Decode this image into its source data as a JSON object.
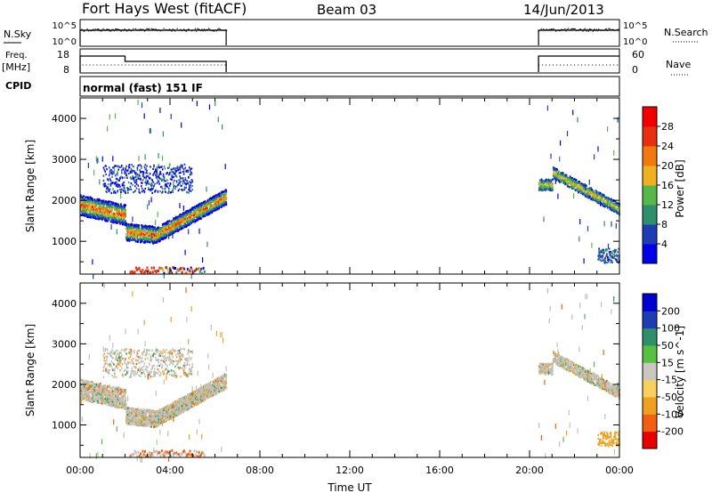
{
  "header": {
    "title": "Fort Hays West (fitACF)",
    "beam": "Beam 03",
    "date": "14/Jun/2013"
  },
  "top_panels": {
    "nsky_label": "N.Sky",
    "nsky_ticks": [
      "10^5",
      "10^0"
    ],
    "nsearch_label": "N.Search",
    "nsearch_ticks": [
      "10^5",
      "10^0"
    ],
    "freq_label": "Freq.",
    "freq_unit": "[MHz]",
    "freq_ticks": [
      "18",
      "8"
    ],
    "nave_label": "Nave",
    "nave_ticks": [
      "60",
      "0"
    ],
    "cpid_label": "CPID",
    "cpid_value": "normal (fast) 151 IF",
    "gap_start_hour": 6.5,
    "gap_end_hour": 20.4
  },
  "chart_data": [
    {
      "type": "heatmap",
      "parameter": "Power",
      "ylabel": "Slant Range [km]",
      "ylim": [
        200,
        4500
      ],
      "yticks": [
        1000,
        2000,
        3000,
        4000
      ],
      "xlim": [
        0,
        24
      ],
      "colorbar_label": "Power [dB]",
      "colorbar_ticks": [
        "28",
        "24",
        "20",
        "16",
        "12",
        "8",
        "4"
      ],
      "colorbar_colors": [
        "#0000e8",
        "#1e3cb4",
        "#2f8f6a",
        "#57b84a",
        "#f0b020",
        "#f07a10",
        "#e83010",
        "#f00000"
      ]
    },
    {
      "type": "heatmap",
      "parameter": "Velocity",
      "ylabel": "Slant Range [km]",
      "ylim": [
        200,
        4500
      ],
      "yticks": [
        1000,
        2000,
        3000,
        4000
      ],
      "xlim": [
        0,
        24
      ],
      "xlabel": "Time UT",
      "xticks": [
        "00:00",
        "04:00",
        "08:00",
        "12:00",
        "16:00",
        "20:00",
        "00:00"
      ],
      "colorbar_label": "Velocity [m s^-1]",
      "colorbar_ticks": [
        "200",
        "100",
        "50",
        "15",
        "-15",
        "-50",
        "-100",
        "-200"
      ],
      "colorbar_colors": [
        "#e80000",
        "#f06010",
        "#f0a020",
        "#f8d060",
        "#c8c8c0",
        "#58c040",
        "#2f8f6a",
        "#1e3cb4",
        "#0000d0"
      ]
    }
  ]
}
